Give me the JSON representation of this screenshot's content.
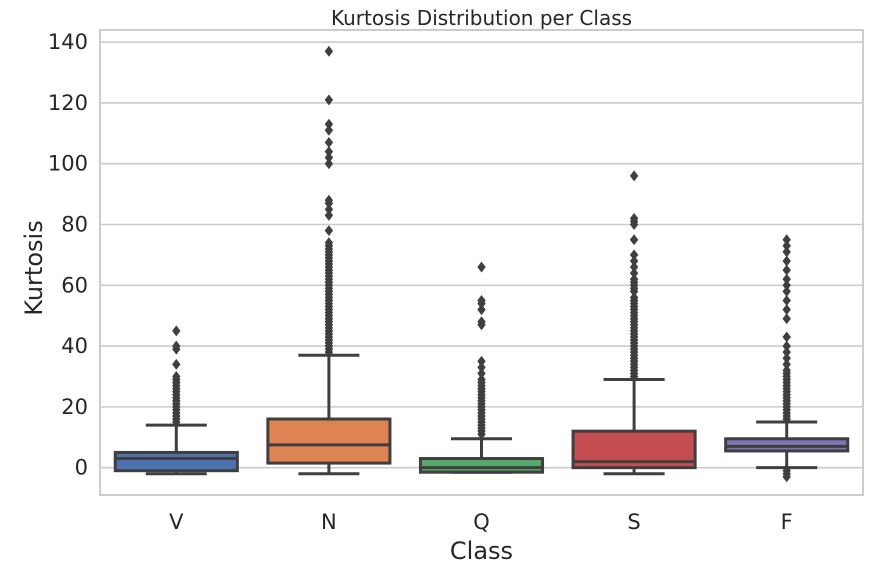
{
  "chart_data": {
    "type": "box",
    "title": "Kurtosis Distribution per Class",
    "xlabel": "Class",
    "ylabel": "Kurtosis",
    "ylim": [
      -9,
      144
    ],
    "yticks": [
      0,
      20,
      40,
      60,
      80,
      100,
      120,
      140
    ],
    "grid": true,
    "categories": [
      "V",
      "N",
      "Q",
      "S",
      "F"
    ],
    "colors": [
      "#4c72b0",
      "#dd8452",
      "#55a868",
      "#c44e52",
      "#8172b3"
    ],
    "boxes": [
      {
        "name": "V",
        "whislo": -2,
        "q1": -1,
        "med": 3,
        "q3": 5,
        "whishi": 14,
        "fliers": [
          15,
          16,
          17,
          18,
          19,
          20,
          21,
          22,
          23,
          24,
          25,
          26,
          27,
          28,
          29,
          30,
          34,
          39,
          40,
          45
        ]
      },
      {
        "name": "N",
        "whislo": -2,
        "q1": 1.5,
        "med": 7.5,
        "q3": 16,
        "whishi": 37,
        "fliers": [
          38,
          39,
          40,
          41,
          42,
          43,
          44,
          45,
          46,
          47,
          48,
          49,
          50,
          51,
          52,
          53,
          54,
          55,
          56,
          57,
          58,
          59,
          60,
          61,
          62,
          63,
          64,
          65,
          66,
          67,
          68,
          69,
          70,
          71,
          72,
          73,
          74,
          78,
          83,
          85,
          87,
          88,
          100,
          102,
          104,
          107,
          111,
          113,
          121,
          137
        ]
      },
      {
        "name": "Q",
        "whislo": -1.5,
        "q1": -1.5,
        "med": 0,
        "q3": 3,
        "whishi": 9.5,
        "fliers": [
          11,
          12,
          13,
          14,
          15,
          16,
          17,
          18,
          19,
          20,
          21,
          22,
          23,
          24,
          25,
          26,
          27,
          28,
          29,
          31,
          33,
          35,
          47,
          48,
          52,
          54,
          55,
          66
        ]
      },
      {
        "name": "S",
        "whislo": -2,
        "q1": 0,
        "med": 2,
        "q3": 12,
        "whishi": 29,
        "fliers": [
          30,
          31,
          32,
          33,
          34,
          35,
          36,
          37,
          38,
          39,
          40,
          41,
          42,
          43,
          44,
          45,
          46,
          47,
          48,
          49,
          50,
          51,
          52,
          53,
          54,
          55,
          56,
          58,
          59,
          60,
          61,
          62,
          64,
          66,
          68,
          70,
          75,
          80,
          81,
          82,
          96
        ]
      },
      {
        "name": "F",
        "whislo": 0,
        "q1": 5.5,
        "med": 7,
        "q3": 9.5,
        "whishi": 15,
        "fliers": [
          -3,
          -2,
          -1,
          16,
          17,
          18,
          19,
          20,
          21,
          22,
          23,
          24,
          25,
          26,
          27,
          28,
          29,
          30,
          31,
          32,
          34,
          36,
          38,
          40,
          43,
          49,
          52,
          55,
          58,
          60,
          62,
          65,
          68,
          71,
          73,
          75
        ]
      }
    ]
  }
}
